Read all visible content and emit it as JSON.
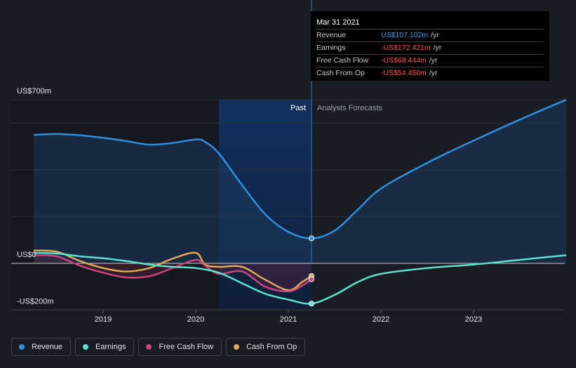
{
  "tooltip": {
    "date": "Mar 31 2021",
    "rows": [
      {
        "label": "Revenue",
        "value": "US$107.102m",
        "unit": "/yr",
        "color": "#3d9ae8"
      },
      {
        "label": "Earnings",
        "value": "-US$172.421m",
        "unit": "/yr",
        "color": "#ff4f4f"
      },
      {
        "label": "Free Cash Flow",
        "value": "-US$68.444m",
        "unit": "/yr",
        "color": "#ff4f4f"
      },
      {
        "label": "Cash From Op",
        "value": "-US$54.450m",
        "unit": "/yr",
        "color": "#ff4f4f"
      }
    ]
  },
  "legend": [
    {
      "label": "Revenue",
      "color": "#2f8fe0"
    },
    {
      "label": "Earnings",
      "color": "#5ee0cc"
    },
    {
      "label": "Free Cash Flow",
      "color": "#c9437f"
    },
    {
      "label": "Cash From Op",
      "color": "#e0a95a"
    }
  ],
  "chart_data": {
    "type": "line",
    "y_labels": {
      "top": "US$700m",
      "zero": "US$0",
      "bottom": "-US$200m"
    },
    "ylim": [
      -200,
      700
    ],
    "xlim": [
      2018.2,
      2024.0
    ],
    "x_ticks": [
      2019,
      2020,
      2021,
      2022,
      2023
    ],
    "x_tick_labels": [
      "2019",
      "2020",
      "2021",
      "2022",
      "2023"
    ],
    "past_label": "Past",
    "forecast_label": "Analysts Forecasts",
    "divider_x": 2021.25,
    "shaded_start_x": 2020.25,
    "series": [
      {
        "name": "Revenue",
        "color": "#2f8fe0",
        "fill": true,
        "x": [
          2018.25,
          2018.5,
          2018.75,
          2019.0,
          2019.25,
          2019.5,
          2019.75,
          2020.0,
          2020.1,
          2020.25,
          2020.5,
          2020.75,
          2021.0,
          2021.25,
          2021.5,
          2021.75,
          2022.0,
          2022.5,
          2023.0,
          2023.5,
          2024.0
        ],
        "y": [
          550,
          553,
          548,
          537,
          523,
          508,
          515,
          530,
          520,
          470,
          335,
          210,
          135,
          107,
          140,
          230,
          320,
          430,
          525,
          615,
          700
        ]
      },
      {
        "name": "Earnings",
        "color": "#5ee0cc",
        "fill": false,
        "x": [
          2018.25,
          2018.5,
          2018.75,
          2019.0,
          2019.25,
          2019.5,
          2019.75,
          2020.0,
          2020.25,
          2020.5,
          2020.75,
          2021.0,
          2021.25,
          2021.5,
          2021.75,
          2022.0,
          2022.5,
          2023.0,
          2023.5,
          2024.0
        ],
        "y": [
          45,
          42,
          30,
          22,
          10,
          -5,
          -15,
          -20,
          -40,
          -85,
          -130,
          -155,
          -172,
          -135,
          -80,
          -45,
          -20,
          -5,
          15,
          35
        ]
      },
      {
        "name": "Free Cash Flow",
        "color": "#c9437f",
        "fill": false,
        "x": [
          2018.25,
          2018.5,
          2018.75,
          2019.0,
          2019.25,
          2019.5,
          2019.75,
          2020.0,
          2020.1,
          2020.25,
          2020.5,
          2020.75,
          2021.0,
          2021.15,
          2021.25
        ],
        "y": [
          35,
          30,
          -10,
          -40,
          -60,
          -55,
          -20,
          15,
          -10,
          -45,
          -35,
          -100,
          -120,
          -95,
          -68
        ]
      },
      {
        "name": "Cash From Op",
        "color": "#e0a95a",
        "fill": false,
        "x": [
          2018.25,
          2018.5,
          2018.75,
          2019.0,
          2019.25,
          2019.5,
          2019.75,
          2020.0,
          2020.1,
          2020.25,
          2020.5,
          2020.75,
          2021.0,
          2021.15,
          2021.25
        ],
        "y": [
          55,
          50,
          10,
          -20,
          -35,
          -20,
          20,
          45,
          -5,
          -15,
          -15,
          -70,
          -115,
          -80,
          -54
        ]
      }
    ]
  }
}
